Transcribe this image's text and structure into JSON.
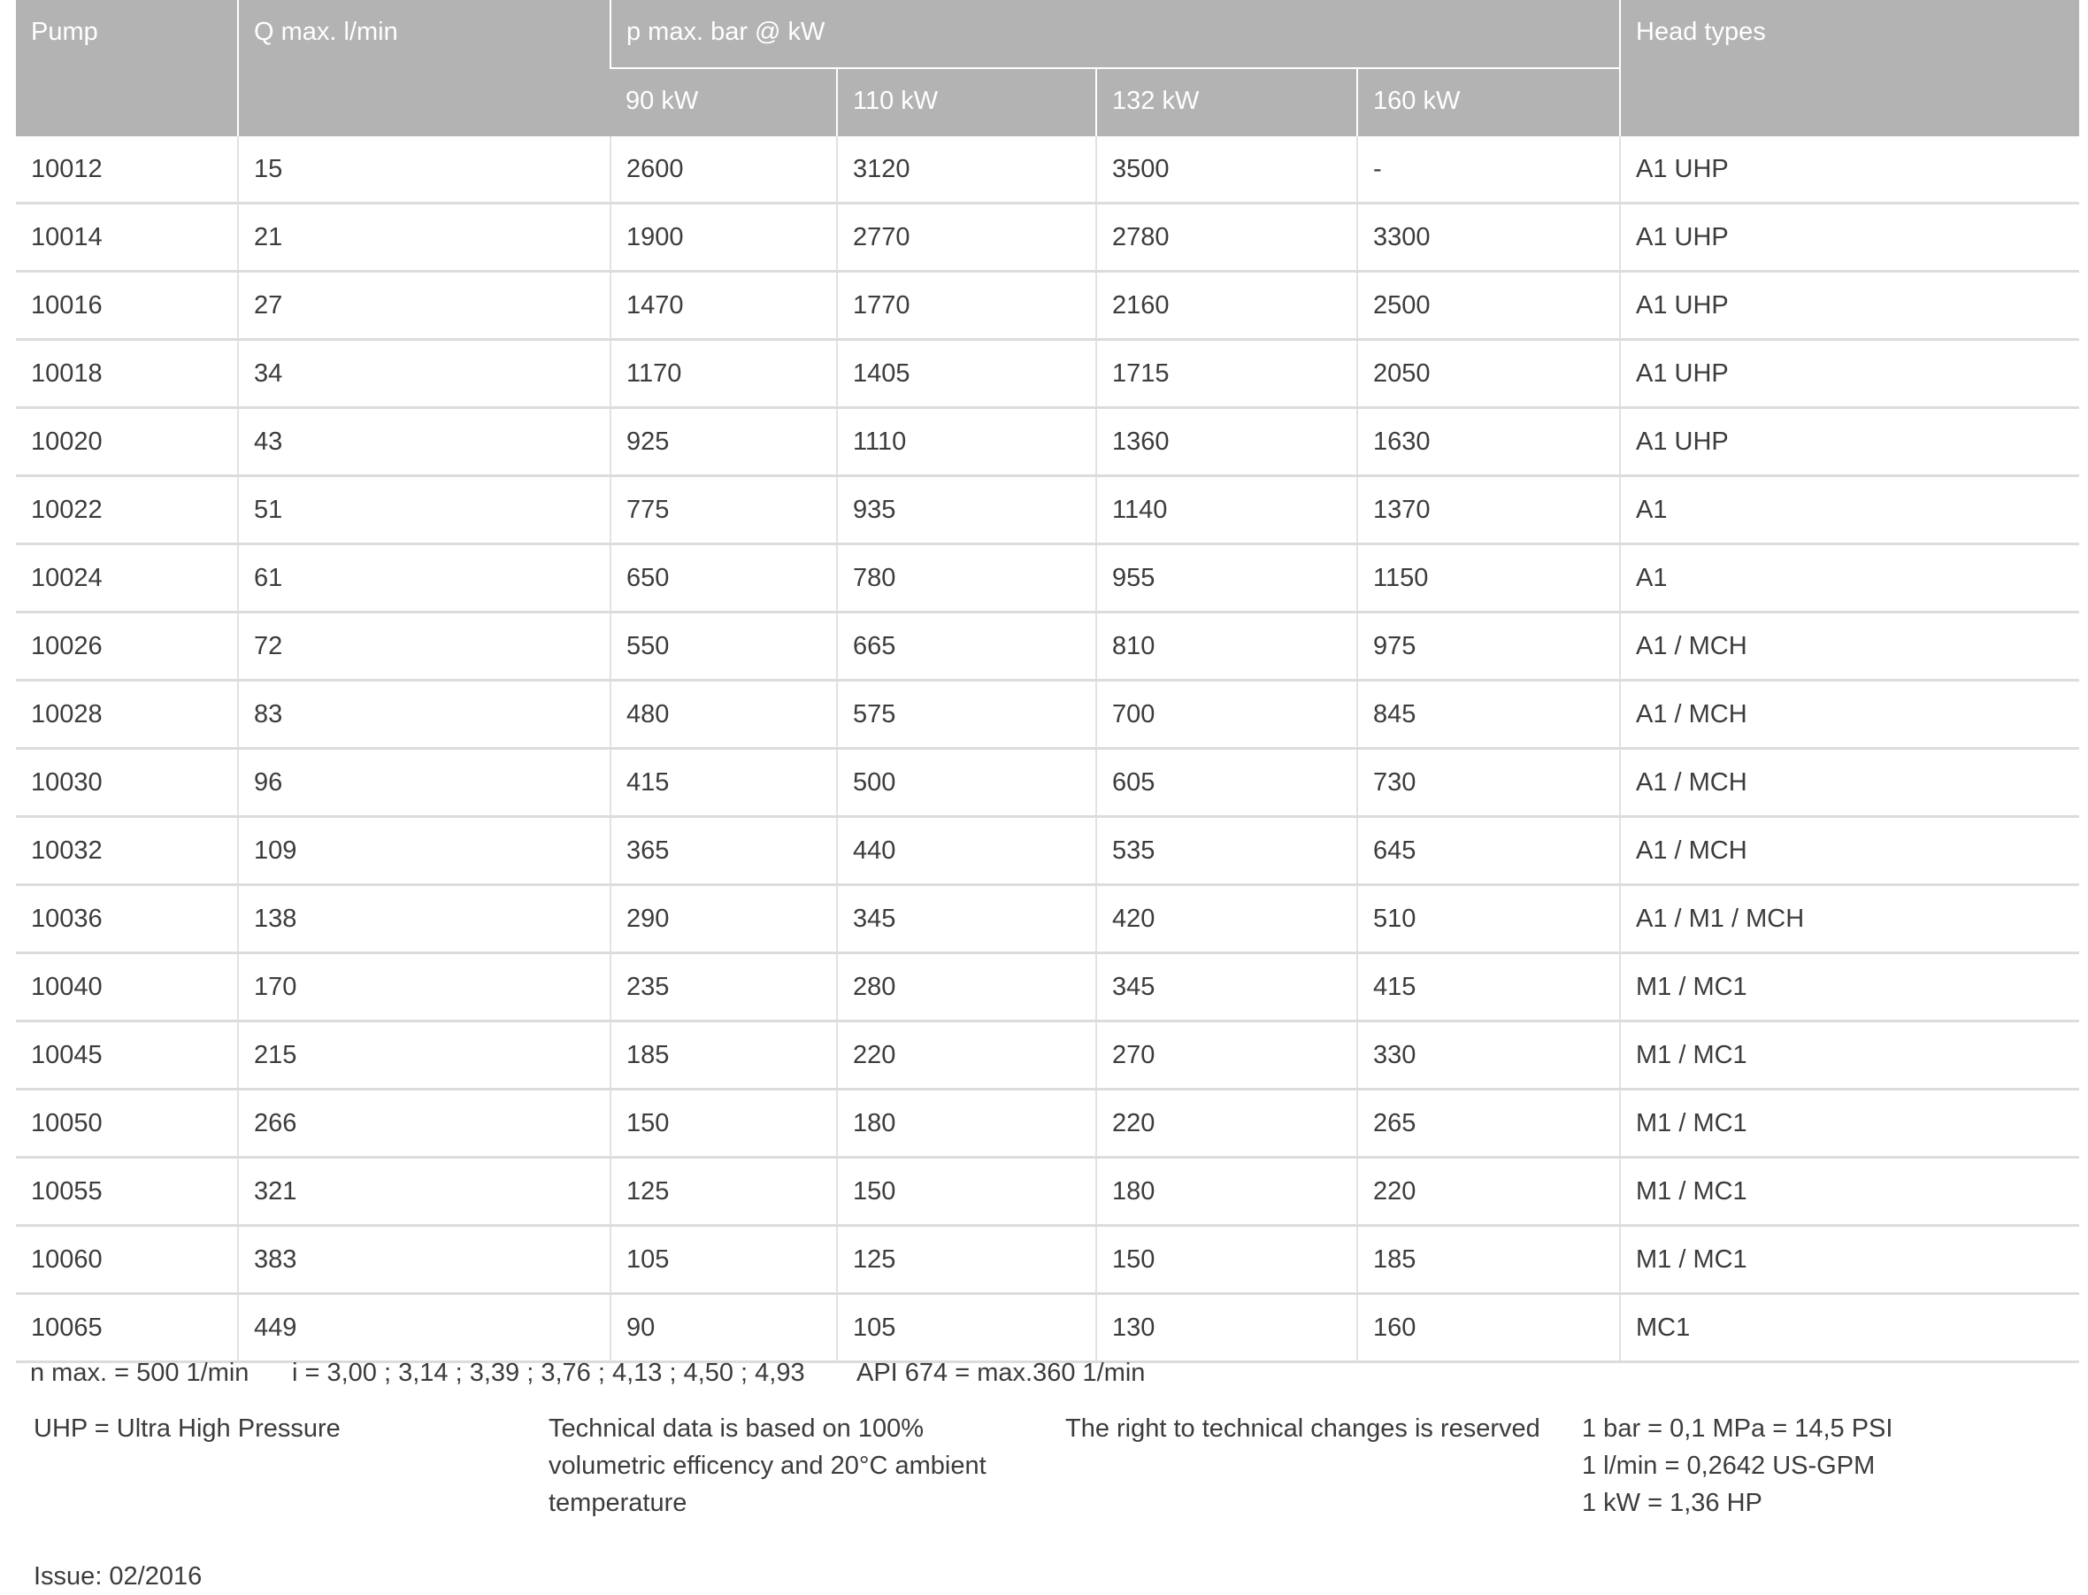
{
  "header": {
    "pump": "Pump",
    "q_max": "Q max. l/min",
    "p_max": "p max. bar @ kW",
    "head_types": "Head types",
    "powers": [
      "90 kW",
      "110 kW",
      "132 kW",
      "160 kW"
    ]
  },
  "rows": [
    [
      "10012",
      "15",
      "2600",
      "3120",
      "3500",
      "-",
      "A1 UHP"
    ],
    [
      "10014",
      "21",
      "1900",
      "2770",
      "2780",
      "3300",
      "A1 UHP"
    ],
    [
      "10016",
      "27",
      "1470",
      "1770",
      "2160",
      "2500",
      "A1 UHP"
    ],
    [
      "10018",
      "34",
      "1170",
      "1405",
      "1715",
      "2050",
      "A1 UHP"
    ],
    [
      "10020",
      "43",
      "925",
      "1110",
      "1360",
      "1630",
      "A1 UHP"
    ],
    [
      "10022",
      "51",
      "775",
      "935",
      "1140",
      "1370",
      "A1"
    ],
    [
      "10024",
      "61",
      "650",
      "780",
      "955",
      "1150",
      "A1"
    ],
    [
      "10026",
      "72",
      "550",
      "665",
      "810",
      "975",
      "A1 / MCH"
    ],
    [
      "10028",
      "83",
      "480",
      "575",
      "700",
      "845",
      "A1 / MCH"
    ],
    [
      "10030",
      "96",
      "415",
      "500",
      "605",
      "730",
      "A1 / MCH"
    ],
    [
      "10032",
      "109",
      "365",
      "440",
      "535",
      "645",
      "A1 / MCH"
    ],
    [
      "10036",
      "138",
      "290",
      "345",
      "420",
      "510",
      "A1 / M1 / MCH"
    ],
    [
      "10040",
      "170",
      "235",
      "280",
      "345",
      "415",
      "M1 / MC1"
    ],
    [
      "10045",
      "215",
      "185",
      "220",
      "270",
      "330",
      "M1 / MC1"
    ],
    [
      "10050",
      "266",
      "150",
      "180",
      "220",
      "265",
      "M1 / MC1"
    ],
    [
      "10055",
      "321",
      "125",
      "150",
      "180",
      "220",
      "M1 / MC1"
    ],
    [
      "10060",
      "383",
      "105",
      "125",
      "150",
      "185",
      "M1 / MC1"
    ],
    [
      "10065",
      "449",
      "90",
      "105",
      "130",
      "160",
      "MC1"
    ]
  ],
  "footnotes": {
    "n_max": "n max. = 500 1/min",
    "ratios": "i = 3,00 ; 3,14 ; 3,39 ; 3,76 ; 4,13 ; 4,50 ; 4,93",
    "api": "API 674 = max.360 1/min",
    "uhp": "UHP = Ultra High Pressure",
    "technical": "Technical data is based on 100%\nvolumetric efficency and 20°C ambient\ntemperature",
    "rights": "The right to technical changes is reserved",
    "conversions": "1 bar = 0,1 MPa = 14,5 PSI\n1 l/min = 0,2642 US-GPM\n1 kW = 1,36 HP",
    "issue": "Issue: 02/2016"
  },
  "colors": {
    "header_bg": "#b3b3b3",
    "header_text": "#ffffff",
    "row_border": "#dcdcdc"
  }
}
